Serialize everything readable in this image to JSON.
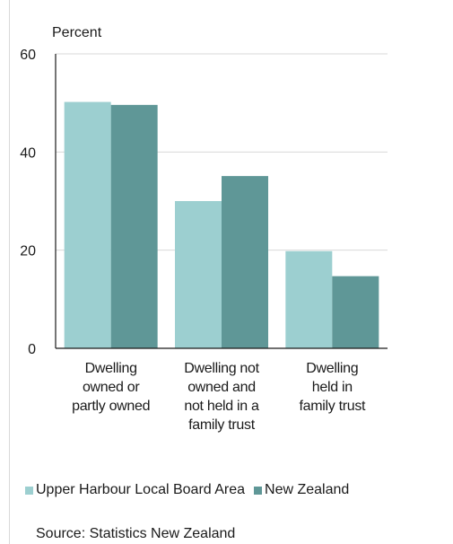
{
  "chart_data": {
    "type": "bar",
    "ylabel": "Percent",
    "ylim": [
      0,
      60
    ],
    "yticks": [
      0,
      20,
      40,
      60
    ],
    "grid": true,
    "categories": [
      [
        "Dwelling",
        "owned or",
        "partly owned"
      ],
      [
        "Dwelling not",
        "owned and",
        "not held in a",
        "family trust"
      ],
      [
        "Dwelling",
        "held in",
        "family trust"
      ]
    ],
    "series": [
      {
        "name": "Upper Harbour Local Board Area",
        "color": "#9ccfd0",
        "values": [
          50.2,
          30.0,
          19.8
        ]
      },
      {
        "name": "New Zealand",
        "color": "#5f9797",
        "values": [
          49.6,
          35.1,
          14.7
        ]
      }
    ],
    "legend_position": "bottom",
    "source": "Source: Statistics New Zealand"
  }
}
